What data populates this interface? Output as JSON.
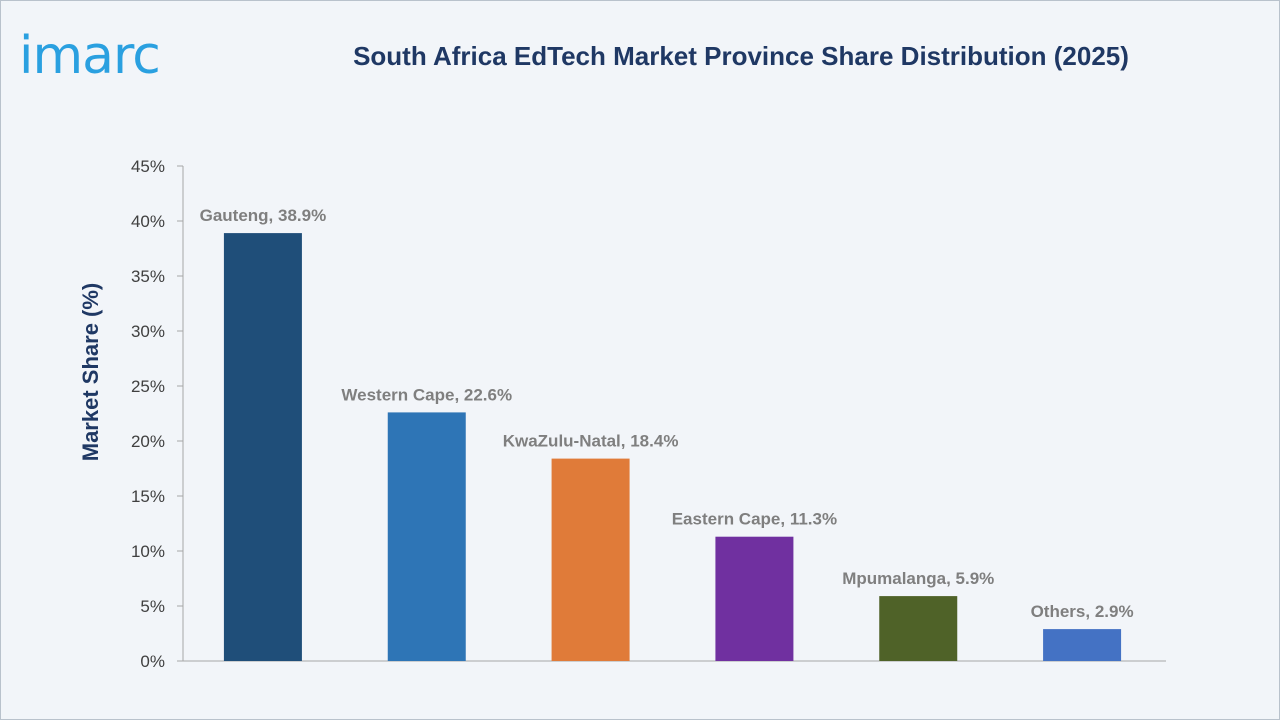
{
  "brand": {
    "logo_text": "imarc",
    "logo_color": "#2aa0e0"
  },
  "chart_data": {
    "type": "bar",
    "title": "South Africa EdTech Market Province Share Distribution (2025)",
    "xlabel": "",
    "ylabel": "Market Share (%)",
    "ylim": [
      0,
      45
    ],
    "yticks": [
      "0%",
      "5%",
      "10%",
      "15%",
      "20%",
      "25%",
      "30%",
      "35%",
      "40%",
      "45%"
    ],
    "grid": false,
    "legend": "none",
    "categories": [
      "Gauteng",
      "Western Cape",
      "KwaZulu-Natal",
      "Eastern Cape",
      "Mpumalanga",
      "Others"
    ],
    "values": [
      38.9,
      22.6,
      18.4,
      11.3,
      5.9,
      2.9
    ],
    "data_labels": [
      "Gauteng, 38.9%",
      "Western Cape, 22.6%",
      "KwaZulu-Natal, 18.4%",
      "Eastern Cape, 11.3%",
      "Mpumalanga, 5.9%",
      "Others, 2.9%"
    ],
    "colors": [
      "#1f4e79",
      "#2e75b6",
      "#e07b39",
      "#7030a0",
      "#4f6228",
      "#4472c4"
    ]
  }
}
